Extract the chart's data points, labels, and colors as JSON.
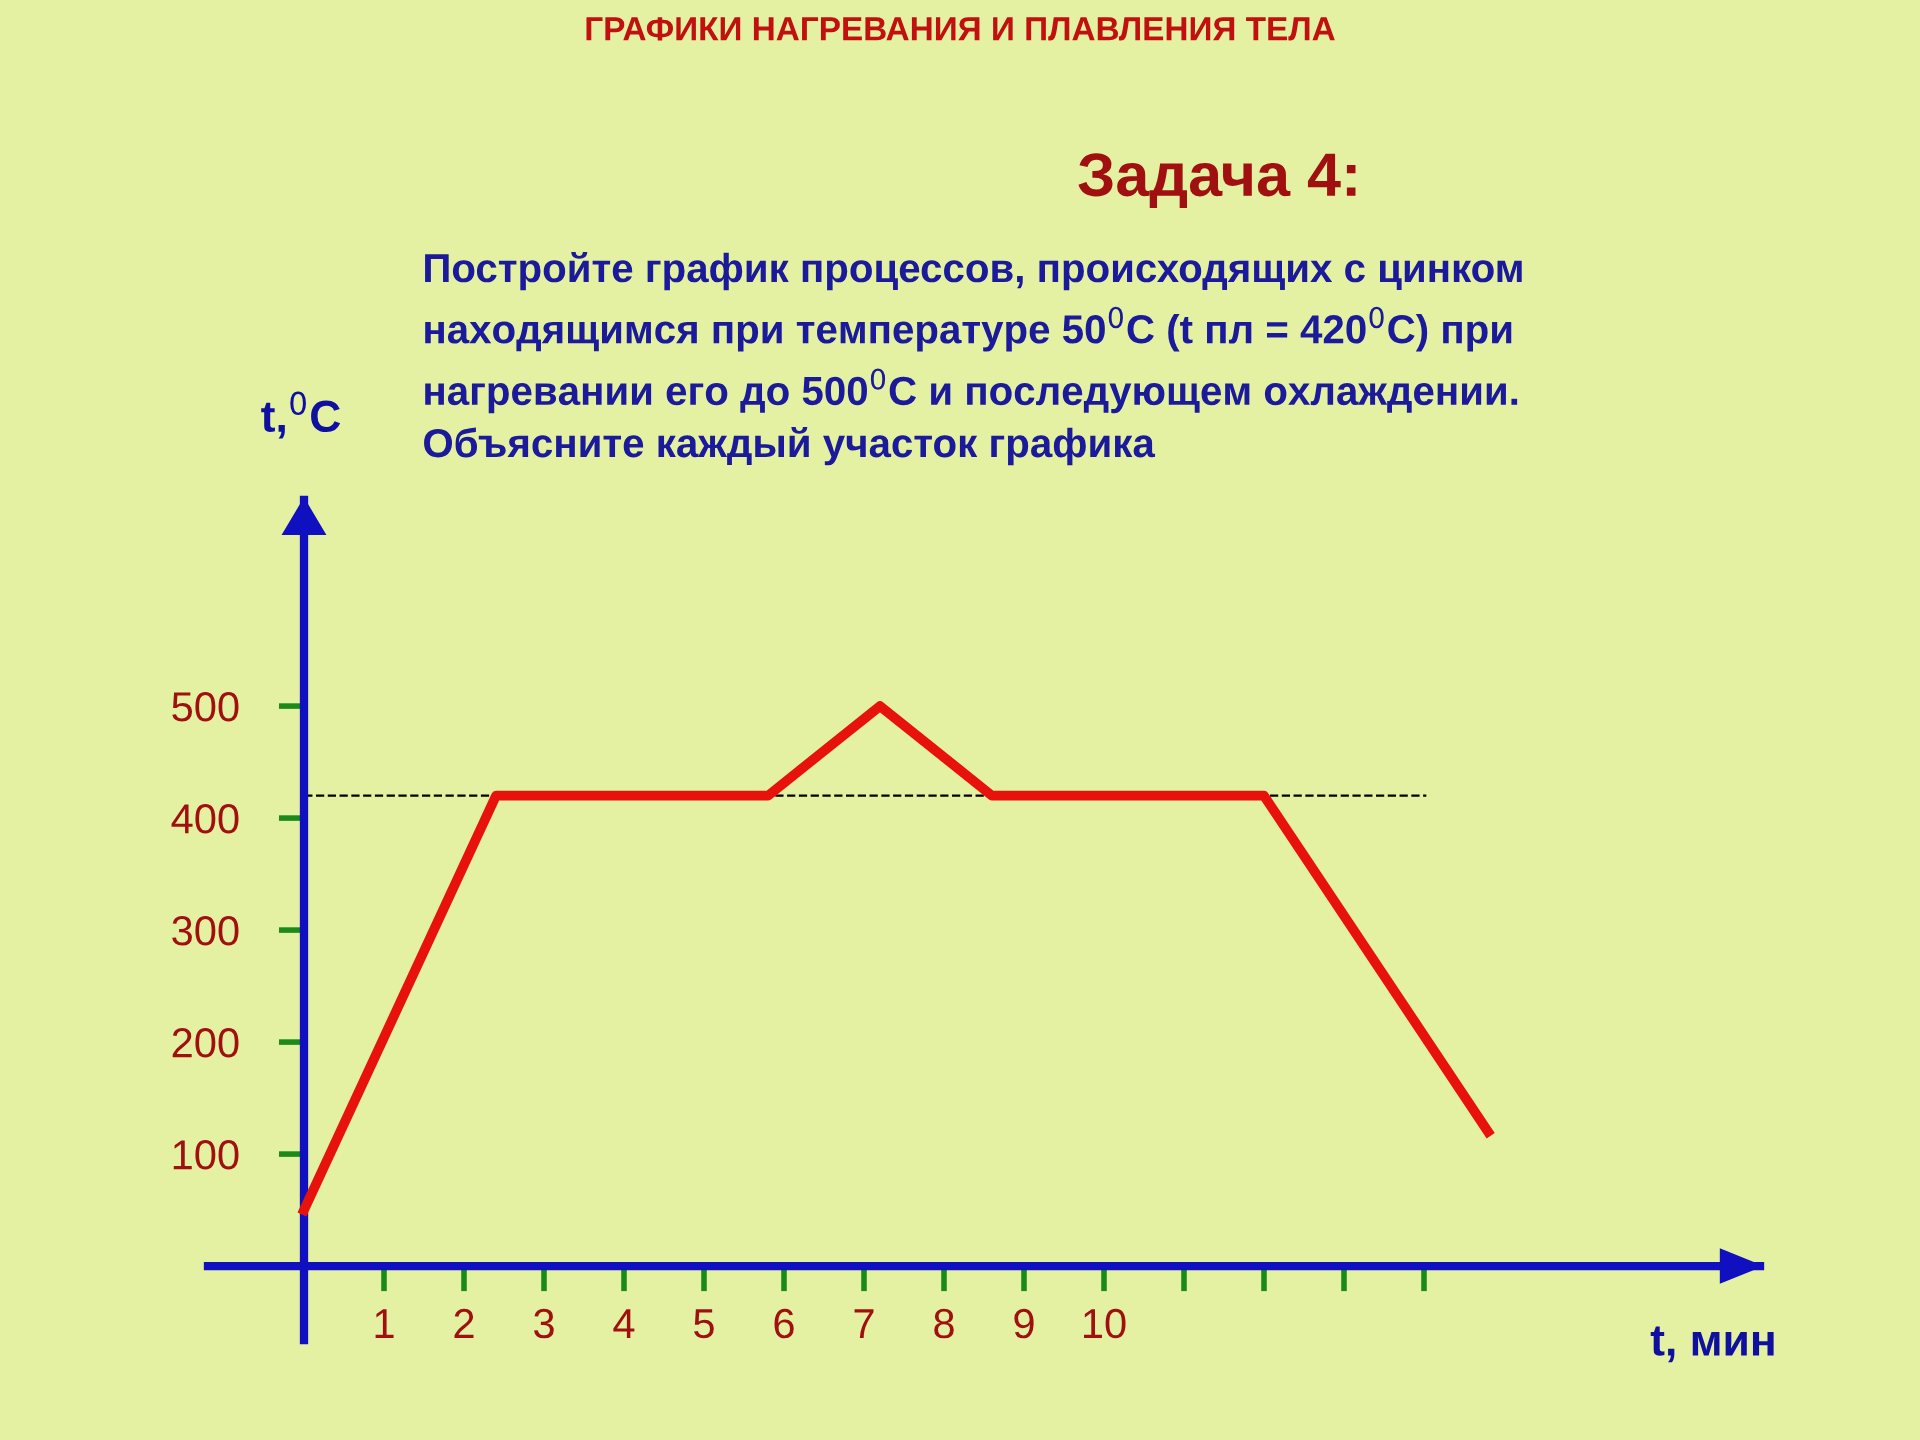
{
  "chart_data": {
    "type": "line",
    "title": "ГРАФИКИ НАГРЕВАНИЯ И ПЛАВЛЕНИЯ ТЕЛА",
    "subtitle": "Задача 4:",
    "annotations": [
      "Постройте график процессов, происходящих с цинком\nнаходящимся при температуре 50$^{0}$С (t пл = 420$^{0}$С) при\nнагревании его до 500$^{0}$С и последующем охлаждении.\nОбъясните каждый участок графика"
    ],
    "xlabel": "t, мин",
    "ylabel": "t,$^{0}$C",
    "series": [
      {
        "color": "#e8120c",
        "x": [
          0,
          2.4,
          5.8,
          7.2,
          8.6,
          12,
          14.8
        ],
        "values": [
          50,
          420,
          420,
          500,
          420,
          420,
          120
        ]
      }
    ],
    "xlim": [
      -1.2,
      18.2
    ],
    "ylim": [
      -66,
      684
    ],
    "xticks": [
      1,
      2,
      3,
      4,
      5,
      6,
      7,
      8,
      9,
      10,
      {
        "value": 11,
        "label": null
      },
      {
        "value": 12,
        "label": null
      },
      {
        "value": 13,
        "label": null
      },
      {
        "value": 14,
        "label": null
      }
    ],
    "yticks": [
      100,
      200,
      300,
      400,
      500
    ],
    "ref_lines": [
      {
        "axis": "y",
        "value": 420,
        "label": null,
        "color": "#000000",
        "line_style": "dashed"
      }
    ],
    "grid": false,
    "legend": false,
    "marker": "none",
    "line_style": "solid"
  }
}
